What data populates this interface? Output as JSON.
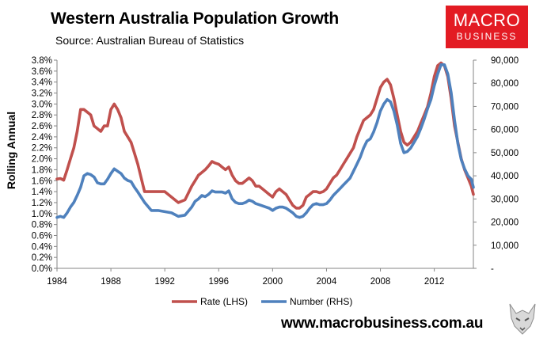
{
  "header": {
    "title": "Western Australia Population Growth",
    "subtitle": "Source: Australian Bureau of Statistics"
  },
  "logo": {
    "line1": "MACRO",
    "line2": "BUSINESS"
  },
  "footer": {
    "website": "www.macrobusiness.com.au"
  },
  "colors": {
    "rate": "#c0504d",
    "number": "#4f81bd",
    "logo_bg": "#e31b23"
  },
  "chart_data": {
    "type": "line",
    "title": "Western Australia Population Growth",
    "ylabel": "Rolling Annual",
    "xlim": [
      1984,
      2014.9
    ],
    "ylim_left": [
      0,
      3.8
    ],
    "ylim_right": [
      0,
      90000
    ],
    "x_ticks": [
      1984,
      1988,
      1992,
      1996,
      2000,
      2004,
      2008,
      2012
    ],
    "x_tick_labels": [
      "1984",
      "1988",
      "1992",
      "1996",
      "2000",
      "2004",
      "2008",
      "2012"
    ],
    "y_left_ticks": [
      0,
      0.2,
      0.4,
      0.6,
      0.8,
      1.0,
      1.2,
      1.4,
      1.6,
      1.8,
      2.0,
      2.2,
      2.4,
      2.6,
      2.8,
      3.0,
      3.2,
      3.4,
      3.6,
      3.8
    ],
    "y_left_tick_labels": [
      "0.0%",
      "0.2%",
      "0.4%",
      "0.6%",
      "0.8%",
      "1.0%",
      "1.2%",
      "1.4%",
      "1.6%",
      "1.8%",
      "2.0%",
      "2.2%",
      "2.4%",
      "2.6%",
      "2.8%",
      "3.0%",
      "3.2%",
      "3.4%",
      "3.6%",
      "3.8%"
    ],
    "y_right_ticks": [
      0,
      10000,
      20000,
      30000,
      40000,
      50000,
      60000,
      70000,
      80000,
      90000
    ],
    "y_right_tick_labels": [
      "-",
      "10,000",
      "20,000",
      "30,000",
      "40,000",
      "50,000",
      "60,000",
      "70,000",
      "80,000",
      "90,000"
    ],
    "legend": {
      "position": "bottom"
    },
    "series": [
      {
        "name": "Rate (LHS)",
        "axis": "left",
        "color": "#c0504d",
        "x": [
          1984.0,
          1984.25,
          1984.5,
          1984.75,
          1985.0,
          1985.25,
          1985.5,
          1985.75,
          1986.0,
          1986.25,
          1986.5,
          1986.75,
          1987.0,
          1987.25,
          1987.5,
          1987.75,
          1988.0,
          1988.25,
          1988.5,
          1988.75,
          1989.0,
          1989.25,
          1989.5,
          1989.75,
          1990.0,
          1990.5,
          1991.0,
          1991.5,
          1992.0,
          1992.5,
          1993.0,
          1993.5,
          1994.0,
          1994.25,
          1994.5,
          1994.75,
          1995.0,
          1995.25,
          1995.5,
          1995.75,
          1996.0,
          1996.25,
          1996.5,
          1996.75,
          1997.0,
          1997.25,
          1997.5,
          1997.75,
          1998.0,
          1998.25,
          1998.5,
          1998.75,
          1999.0,
          1999.25,
          1999.5,
          1999.75,
          2000.0,
          2000.25,
          2000.5,
          2000.75,
          2001.0,
          2001.25,
          2001.5,
          2001.75,
          2002.0,
          2002.25,
          2002.5,
          2002.75,
          2003.0,
          2003.25,
          2003.5,
          2003.75,
          2004.0,
          2004.25,
          2004.5,
          2004.75,
          2005.0,
          2005.25,
          2005.5,
          2005.75,
          2006.0,
          2006.25,
          2006.5,
          2006.75,
          2007.0,
          2007.25,
          2007.5,
          2007.75,
          2008.0,
          2008.25,
          2008.5,
          2008.75,
          2009.0,
          2009.25,
          2009.5,
          2009.75,
          2010.0,
          2010.25,
          2010.5,
          2010.75,
          2011.0,
          2011.25,
          2011.5,
          2011.75,
          2012.0,
          2012.25,
          2012.5,
          2012.75,
          2013.0,
          2013.25,
          2013.5,
          2013.75,
          2014.0,
          2014.25,
          2014.5,
          2014.75
        ],
        "values": [
          1.63,
          1.64,
          1.61,
          1.8,
          2.0,
          2.2,
          2.5,
          2.9,
          2.9,
          2.85,
          2.8,
          2.6,
          2.55,
          2.5,
          2.6,
          2.6,
          2.9,
          3.0,
          2.9,
          2.75,
          2.5,
          2.4,
          2.3,
          2.1,
          1.9,
          1.4,
          1.4,
          1.4,
          1.4,
          1.3,
          1.2,
          1.25,
          1.5,
          1.6,
          1.7,
          1.75,
          1.8,
          1.87,
          1.95,
          1.92,
          1.9,
          1.85,
          1.8,
          1.85,
          1.7,
          1.6,
          1.55,
          1.55,
          1.6,
          1.65,
          1.6,
          1.5,
          1.5,
          1.45,
          1.4,
          1.35,
          1.3,
          1.4,
          1.45,
          1.4,
          1.35,
          1.25,
          1.15,
          1.1,
          1.1,
          1.15,
          1.3,
          1.35,
          1.4,
          1.4,
          1.38,
          1.4,
          1.45,
          1.55,
          1.65,
          1.7,
          1.8,
          1.9,
          2.0,
          2.1,
          2.2,
          2.4,
          2.55,
          2.7,
          2.75,
          2.8,
          2.9,
          3.1,
          3.3,
          3.4,
          3.45,
          3.35,
          3.1,
          2.8,
          2.5,
          2.3,
          2.25,
          2.3,
          2.4,
          2.5,
          2.65,
          2.8,
          2.95,
          3.2,
          3.5,
          3.7,
          3.75,
          3.7,
          3.5,
          3.1,
          2.6,
          2.3,
          2.0,
          1.8,
          1.65,
          1.5
        ],
        "values_note": "curve ends at ~1.35% around 2014.9"
      },
      {
        "name": "Number (RHS)",
        "axis": "right",
        "color": "#4f81bd",
        "x": [
          1984.0,
          1984.25,
          1984.5,
          1984.75,
          1985.0,
          1985.25,
          1985.5,
          1985.75,
          1986.0,
          1986.25,
          1986.5,
          1986.75,
          1987.0,
          1987.25,
          1987.5,
          1987.75,
          1988.0,
          1988.25,
          1988.5,
          1988.75,
          1989.0,
          1989.25,
          1989.5,
          1989.75,
          1990.0,
          1990.5,
          1991.0,
          1991.5,
          1992.0,
          1992.5,
          1993.0,
          1993.5,
          1994.0,
          1994.25,
          1994.5,
          1994.75,
          1995.0,
          1995.25,
          1995.5,
          1995.75,
          1996.0,
          1996.25,
          1996.5,
          1996.75,
          1997.0,
          1997.25,
          1997.5,
          1997.75,
          1998.0,
          1998.25,
          1998.5,
          1998.75,
          1999.0,
          1999.25,
          1999.5,
          1999.75,
          2000.0,
          2000.25,
          2000.5,
          2000.75,
          2001.0,
          2001.25,
          2001.5,
          2001.75,
          2002.0,
          2002.25,
          2002.5,
          2002.75,
          2003.0,
          2003.25,
          2003.5,
          2003.75,
          2004.0,
          2004.25,
          2004.5,
          2004.75,
          2005.0,
          2005.25,
          2005.5,
          2005.75,
          2006.0,
          2006.25,
          2006.5,
          2006.75,
          2007.0,
          2007.25,
          2007.5,
          2007.75,
          2008.0,
          2008.25,
          2008.5,
          2008.75,
          2009.0,
          2009.25,
          2009.5,
          2009.75,
          2010.0,
          2010.25,
          2010.5,
          2010.75,
          2011.0,
          2011.25,
          2011.5,
          2011.75,
          2012.0,
          2012.25,
          2012.5,
          2012.75,
          2013.0,
          2013.25,
          2013.5,
          2013.75,
          2014.0,
          2014.25,
          2014.5,
          2014.75
        ],
        "values": [
          22000,
          22500,
          22000,
          24000,
          26500,
          28500,
          31500,
          35000,
          40000,
          41000,
          40500,
          39500,
          37000,
          36500,
          36500,
          38500,
          41000,
          43000,
          42000,
          41000,
          39000,
          38000,
          37500,
          35000,
          33000,
          28500,
          25000,
          25000,
          24500,
          24000,
          22500,
          23000,
          26500,
          29000,
          30000,
          31500,
          31000,
          32000,
          33500,
          33000,
          33000,
          33000,
          32500,
          33500,
          30000,
          28500,
          28000,
          28000,
          28500,
          29500,
          29000,
          28000,
          27500,
          27000,
          26500,
          26000,
          25000,
          26000,
          26500,
          26500,
          26000,
          25000,
          24000,
          22500,
          22000,
          22500,
          24000,
          26000,
          27500,
          28000,
          27500,
          27500,
          28000,
          29500,
          31500,
          33000,
          34500,
          36000,
          37500,
          39000,
          42000,
          45000,
          48000,
          52000,
          55000,
          56000,
          59000,
          63000,
          68000,
          71000,
          73000,
          72000,
          68000,
          62000,
          54000,
          50000,
          50500,
          52000,
          54500,
          57000,
          60500,
          64500,
          69000,
          73000,
          79000,
          84000,
          88000,
          88000,
          84000,
          76000,
          64000,
          54000,
          47000,
          43000,
          40000,
          38500
        ],
        "values_note": "curve ends at ~35,000 around 2014.9"
      }
    ]
  }
}
